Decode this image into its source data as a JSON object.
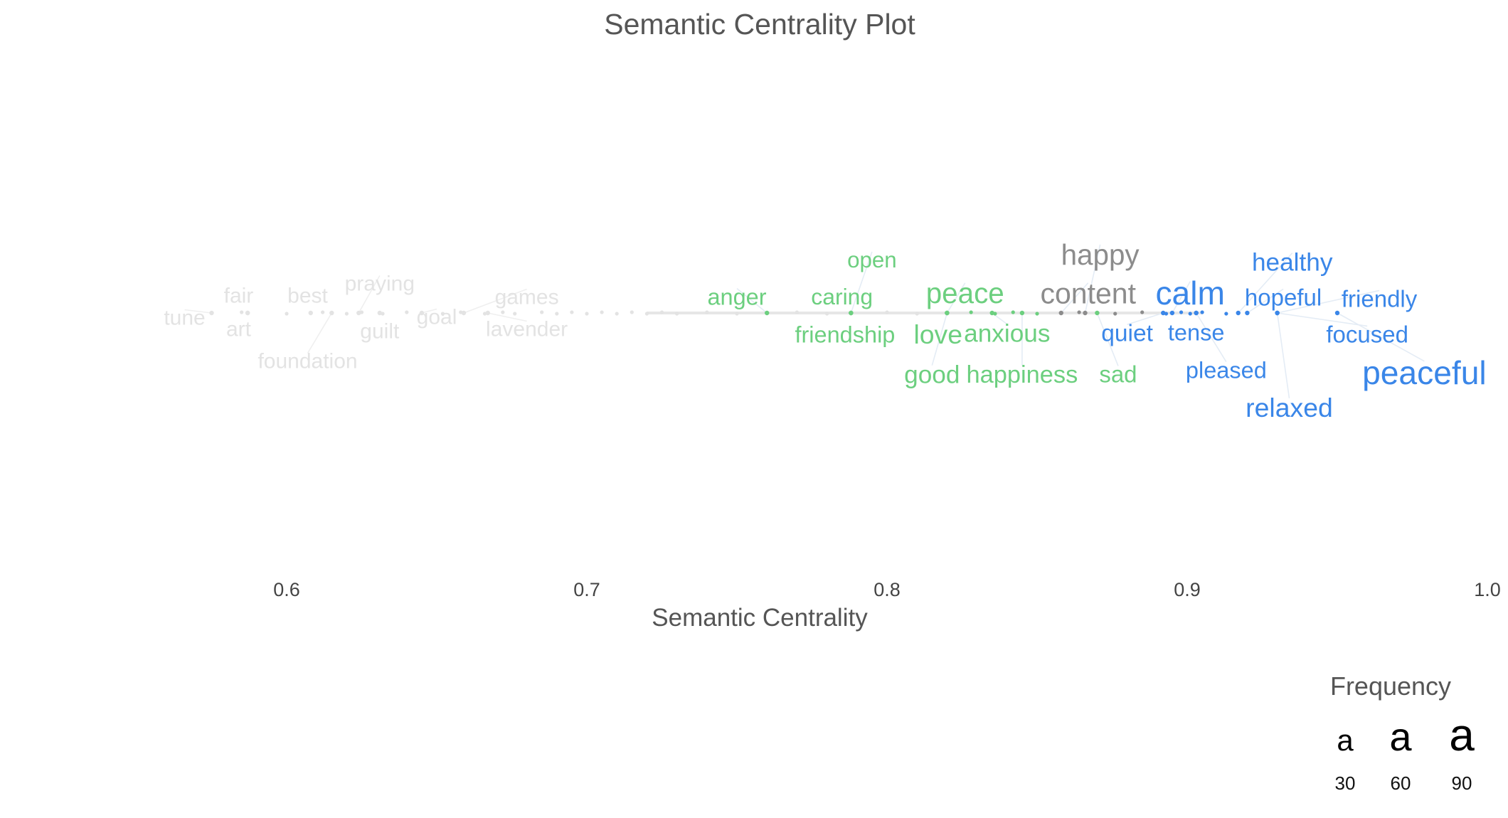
{
  "chart_data": {
    "type": "scatter",
    "title": "Semantic Centrality Plot",
    "xlabel": "Semantic Centrality",
    "ylabel": "",
    "xlim": [
      0.56,
      1.0
    ],
    "x_ticks": [
      "0.6",
      "0.7",
      "0.8",
      "0.9",
      "1.0"
    ],
    "grid": false,
    "legend": {
      "title": "Frequency",
      "position": "bottom-right",
      "glyph": "a",
      "entries": [
        {
          "label": "30",
          "frequency": 30
        },
        {
          "label": "60",
          "frequency": 60
        },
        {
          "label": "90",
          "frequency": 90
        }
      ]
    },
    "colors": {
      "faded": "#e3e3e3",
      "green": "#6ccf7f",
      "gray": "#8c8c8c",
      "blue": "#3a86e8",
      "axis_text": "#444444",
      "title_text": "#555555"
    },
    "labeled_words": [
      {
        "word": "tune",
        "x": 0.575,
        "group": "faded",
        "frequency": 4
      },
      {
        "word": "fair",
        "x": 0.587,
        "group": "faded",
        "frequency": 4
      },
      {
        "word": "art",
        "x": 0.587,
        "group": "faded",
        "frequency": 4
      },
      {
        "word": "best",
        "x": 0.608,
        "group": "faded",
        "frequency": 4
      },
      {
        "word": "foundation",
        "x": 0.615,
        "group": "faded",
        "frequency": 4
      },
      {
        "word": "praying",
        "x": 0.624,
        "group": "faded",
        "frequency": 4
      },
      {
        "word": "guilt",
        "x": 0.631,
        "group": "faded",
        "frequency": 4
      },
      {
        "word": "goal",
        "x": 0.645,
        "group": "faded",
        "frequency": 4
      },
      {
        "word": "games",
        "x": 0.659,
        "group": "faded",
        "frequency": 4
      },
      {
        "word": "lavender",
        "x": 0.667,
        "group": "faded",
        "frequency": 4
      },
      {
        "word": "anger",
        "x": 0.76,
        "group": "green",
        "frequency": 8
      },
      {
        "word": "open",
        "x": 0.788,
        "group": "green",
        "frequency": 6
      },
      {
        "word": "caring",
        "x": 0.788,
        "group": "green",
        "frequency": 7
      },
      {
        "word": "friendship",
        "x": 0.788,
        "group": "green",
        "frequency": 8
      },
      {
        "word": "peace",
        "x": 0.82,
        "group": "green",
        "frequency": 30
      },
      {
        "word": "love",
        "x": 0.82,
        "group": "green",
        "frequency": 20
      },
      {
        "word": "good",
        "x": 0.82,
        "group": "green",
        "frequency": 14
      },
      {
        "word": "anxious",
        "x": 0.835,
        "group": "green",
        "frequency": 14
      },
      {
        "word": "happiness",
        "x": 0.845,
        "group": "green",
        "frequency": 12
      },
      {
        "word": "sad",
        "x": 0.87,
        "group": "green",
        "frequency": 9
      },
      {
        "word": "happy",
        "x": 0.866,
        "group": "gray",
        "frequency": 30
      },
      {
        "word": "content",
        "x": 0.858,
        "group": "gray",
        "frequency": 32
      },
      {
        "word": "calm",
        "x": 0.895,
        "group": "blue",
        "frequency": 55
      },
      {
        "word": "quiet",
        "x": 0.892,
        "group": "blue",
        "frequency": 10
      },
      {
        "word": "tense",
        "x": 0.903,
        "group": "blue",
        "frequency": 8
      },
      {
        "word": "pleased",
        "x": 0.903,
        "group": "blue",
        "frequency": 8
      },
      {
        "word": "healthy",
        "x": 0.917,
        "group": "blue",
        "frequency": 14
      },
      {
        "word": "hopeful",
        "x": 0.92,
        "group": "blue",
        "frequency": 9
      },
      {
        "word": "friendly",
        "x": 0.93,
        "group": "blue",
        "frequency": 9
      },
      {
        "word": "focused",
        "x": 0.93,
        "group": "blue",
        "frequency": 9
      },
      {
        "word": "peaceful",
        "x": 0.95,
        "group": "blue",
        "frequency": 55
      },
      {
        "word": "relaxed",
        "x": 0.93,
        "group": "blue",
        "frequency": 20
      }
    ],
    "unlabeled_points_x": [
      0.585,
      0.6,
      0.612,
      0.62,
      0.625,
      0.632,
      0.64,
      0.652,
      0.658,
      0.666,
      0.672,
      0.676,
      0.685,
      0.69,
      0.695,
      0.7,
      0.705,
      0.71,
      0.715,
      0.72,
      0.725,
      0.73,
      0.74,
      0.75,
      0.77,
      0.78,
      0.8,
      0.81,
      0.828,
      0.836,
      0.842,
      0.85,
      0.864,
      0.876,
      0.885,
      0.893,
      0.898,
      0.901,
      0.905,
      0.913
    ]
  }
}
